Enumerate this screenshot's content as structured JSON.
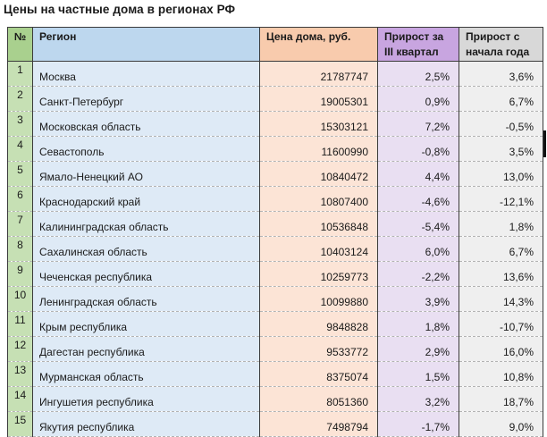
{
  "title": "Цены на частные дома в регионах РФ",
  "table": {
    "headers": {
      "num": "№",
      "region": "Регион",
      "price": "Цена дома, руб.",
      "q3": "Прирост за III квартал",
      "ytd": "Прирост с начала года"
    },
    "rows": [
      {
        "num": "1",
        "region": "Москва",
        "price": "21787747",
        "q3": "2,5%",
        "ytd": "3,6%"
      },
      {
        "num": "2",
        "region": "Санкт-Петербург",
        "price": "19005301",
        "q3": "0,9%",
        "ytd": "6,7%"
      },
      {
        "num": "3",
        "region": "Московская область",
        "price": "15303121",
        "q3": "7,2%",
        "ytd": "-0,5%"
      },
      {
        "num": "4",
        "region": "Севастополь",
        "price": "11600990",
        "q3": "-0,8%",
        "ytd": "3,5%"
      },
      {
        "num": "5",
        "region": "Ямало-Ненецкий АО",
        "price": "10840472",
        "q3": "4,4%",
        "ytd": "13,0%"
      },
      {
        "num": "6",
        "region": "Краснодарский край",
        "price": "10807400",
        "q3": "-4,6%",
        "ytd": "-12,1%"
      },
      {
        "num": "7",
        "region": "Калининградская область",
        "price": "10536848",
        "q3": "-5,4%",
        "ytd": "1,8%"
      },
      {
        "num": "8",
        "region": "Сахалинская область",
        "price": "10403124",
        "q3": "6,0%",
        "ytd": "6,7%"
      },
      {
        "num": "9",
        "region": "Чеченская республика",
        "price": "10259773",
        "q3": "-2,2%",
        "ytd": "13,6%"
      },
      {
        "num": "10",
        "region": "Ленинградская область",
        "price": "10099880",
        "q3": "3,9%",
        "ytd": "14,3%"
      },
      {
        "num": "11",
        "region": "Крым республика",
        "price": "9848828",
        "q3": "1,8%",
        "ytd": "-10,7%"
      },
      {
        "num": "12",
        "region": "Дагестан республика",
        "price": "9533772",
        "q3": "2,9%",
        "ytd": "16,0%"
      },
      {
        "num": "13",
        "region": "Мурманская область",
        "price": "8375074",
        "q3": "1,5%",
        "ytd": "10,8%"
      },
      {
        "num": "14",
        "region": "Ингушетия республика",
        "price": "8051360",
        "q3": "3,2%",
        "ytd": "18,7%"
      },
      {
        "num": "15",
        "region": "Якутия республика",
        "price": "7498794",
        "q3": "-1,7%",
        "ytd": "9,0%"
      }
    ]
  },
  "colors": {
    "num-header": "#A9D08E",
    "num-cell": "#C6E0B4",
    "region-header": "#BDD7EE",
    "region-cell": "#DEEAF6",
    "price-header": "#F8CBAD",
    "price-cell": "#FCE4D6",
    "q3-header": "#C8A5E0",
    "q3-cell": "#E9DFF2",
    "ytd-header": "#D8D8D8",
    "ytd-cell": "#EFEFEF",
    "border-solid": "#3b3b3b",
    "border-dashed": "#b3b3b3"
  }
}
